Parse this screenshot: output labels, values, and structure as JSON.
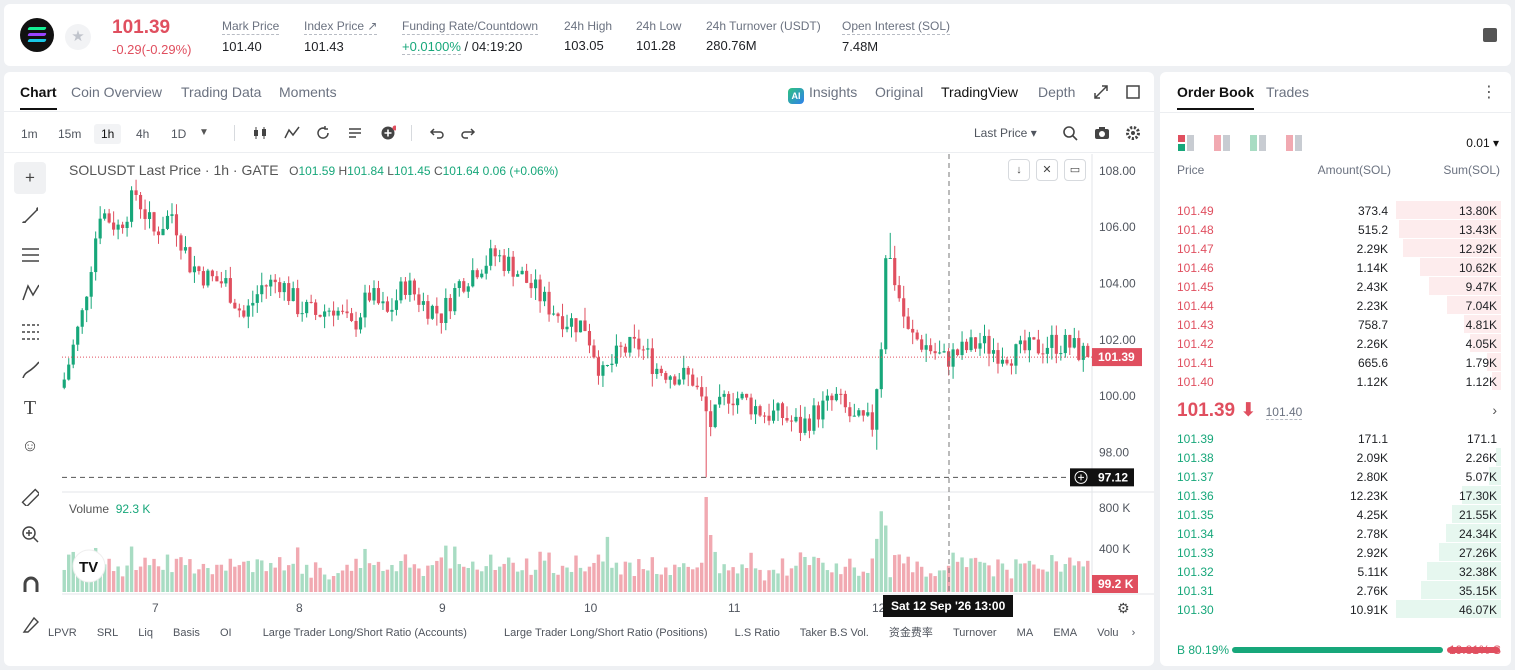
{
  "ticker": {
    "last_price": "101.39",
    "change": "-0.29(-0.29%)",
    "stats": [
      {
        "label": "Mark Price",
        "value": "101.40"
      },
      {
        "label": "Index Price ↗",
        "value": "101.43"
      },
      {
        "label": "Funding Rate/Countdown",
        "value_green": "+0.0100%",
        "value": " / 04:19:20"
      },
      {
        "label": "24h High",
        "value": "103.05"
      },
      {
        "label": "24h Low",
        "value": "101.28"
      },
      {
        "label": "24h Turnover (USDT)",
        "value": "280.76M"
      },
      {
        "label": "Open Interest (SOL)",
        "value": "7.48M"
      }
    ]
  },
  "chart_tabs": [
    "Chart",
    "Coin Overview",
    "Trading Data",
    "Moments"
  ],
  "view_tabs": {
    "ai": "AI",
    "insights": "Insights",
    "original": "Original",
    "tradingview": "TradingView",
    "depth": "Depth"
  },
  "timeframes": [
    "1m",
    "15m",
    "1h",
    "4h",
    "1D"
  ],
  "price_source": "Last Price ▾",
  "legend": {
    "title": "SOLUSDT Last Price · 1h · GATE",
    "o_label": "O",
    "o": "101.59",
    "h_label": "H",
    "h": "101.84",
    "l_label": "L",
    "l": "101.45",
    "c_label": "C",
    "c": "101.64",
    "chg": "0.06 (+0.06%)"
  },
  "volume_legend": {
    "label": "Volume",
    "value": "92.3 K"
  },
  "crosshair": {
    "time": "Sat 12 Sep '26   13:00",
    "price": "97.12"
  },
  "indicators": [
    "LPVR",
    "SRL",
    "Liq",
    "Basis",
    "OI",
    "Large Trader Long/Short Ratio (Accounts)",
    "Large Trader Long/Short Ratio (Positions)",
    "L.S Ratio",
    "Taker B.S Vol.",
    "资金费率",
    "Turnover",
    "MA",
    "EMA",
    "Volu"
  ],
  "chart_data": {
    "type": "candlestick",
    "symbol": "SOLUSDT",
    "interval": "1h",
    "x_ticks": [
      "7",
      "8",
      "9",
      "10",
      "11",
      "12",
      "13"
    ],
    "price_ticks": [
      "108.00",
      "106.00",
      "104.00",
      "102.00",
      "100.00",
      "98.00"
    ],
    "volume_ticks": [
      "800 K",
      "400 K"
    ],
    "ylim": [
      96.6,
      108.6
    ],
    "last_price": 101.39,
    "last_price_label": "101.39",
    "last_volume_label": "99.2 K",
    "close_path": [
      [
        0,
        100.6
      ],
      [
        4,
        102.9
      ],
      [
        8,
        106.6
      ],
      [
        12,
        106.0
      ],
      [
        16,
        107.2
      ],
      [
        20,
        105.8
      ],
      [
        24,
        106.5
      ],
      [
        28,
        104.7
      ],
      [
        32,
        104.2
      ],
      [
        36,
        104.0
      ],
      [
        40,
        102.8
      ],
      [
        44,
        103.9
      ],
      [
        48,
        104.1
      ],
      [
        52,
        103.2
      ],
      [
        56,
        102.9
      ],
      [
        60,
        103.2
      ],
      [
        64,
        102.4
      ],
      [
        68,
        103.6
      ],
      [
        72,
        102.9
      ],
      [
        76,
        104.0
      ],
      [
        80,
        103.3
      ],
      [
        84,
        102.9
      ],
      [
        88,
        104.0
      ],
      [
        92,
        104.6
      ],
      [
        96,
        105.0
      ],
      [
        100,
        104.6
      ],
      [
        104,
        103.9
      ],
      [
        108,
        103.2
      ],
      [
        112,
        102.7
      ],
      [
        116,
        102.5
      ],
      [
        120,
        100.7
      ],
      [
        124,
        101.6
      ],
      [
        128,
        101.8
      ],
      [
        132,
        101.0
      ],
      [
        136,
        100.8
      ],
      [
        140,
        100.6
      ],
      [
        144,
        99.0
      ],
      [
        148,
        100.1
      ],
      [
        152,
        99.8
      ],
      [
        156,
        99.4
      ],
      [
        160,
        99.3
      ],
      [
        164,
        98.9
      ],
      [
        168,
        99.5
      ],
      [
        172,
        99.9
      ],
      [
        176,
        99.1
      ],
      [
        180,
        99.0
      ],
      [
        184,
        104.8
      ],
      [
        188,
        102.2
      ],
      [
        192,
        101.8
      ],
      [
        196,
        101.3
      ],
      [
        200,
        101.6
      ],
      [
        204,
        101.9
      ],
      [
        208,
        101.6
      ],
      [
        212,
        101.5
      ],
      [
        216,
        101.7
      ],
      [
        220,
        101.9
      ],
      [
        224,
        101.8
      ],
      [
        228,
        101.4
      ]
    ]
  },
  "book": {
    "tabs": [
      "Order Book",
      "Trades"
    ],
    "precision": "0.01 ▾",
    "headers": [
      "Price",
      "Amount(SOL)",
      "Sum(SOL)"
    ],
    "asks": [
      {
        "price": "101.49",
        "amount": "373.4",
        "sum": "13.80K",
        "depth": 1.0
      },
      {
        "price": "101.48",
        "amount": "515.2",
        "sum": "13.43K",
        "depth": 0.973
      },
      {
        "price": "101.47",
        "amount": "2.29K",
        "sum": "12.92K",
        "depth": 0.936
      },
      {
        "price": "101.46",
        "amount": "1.14K",
        "sum": "10.62K",
        "depth": 0.77
      },
      {
        "price": "101.45",
        "amount": "2.43K",
        "sum": "9.47K",
        "depth": 0.686
      },
      {
        "price": "101.44",
        "amount": "2.23K",
        "sum": "7.04K",
        "depth": 0.51
      },
      {
        "price": "101.43",
        "amount": "758.7",
        "sum": "4.81K",
        "depth": 0.349
      },
      {
        "price": "101.42",
        "amount": "2.26K",
        "sum": "4.05K",
        "depth": 0.293
      },
      {
        "price": "101.41",
        "amount": "665.6",
        "sum": "1.79K",
        "depth": 0.13
      },
      {
        "price": "101.40",
        "amount": "1.12K",
        "sum": "1.12K",
        "depth": 0.081
      }
    ],
    "mid_price": "101.39 ⬇",
    "mid_ref": "101.40",
    "bids": [
      {
        "price": "101.39",
        "amount": "171.1",
        "sum": "171.1",
        "depth": 0.004
      },
      {
        "price": "101.38",
        "amount": "2.09K",
        "sum": "2.26K",
        "depth": 0.049
      },
      {
        "price": "101.37",
        "amount": "2.80K",
        "sum": "5.07K",
        "depth": 0.11
      },
      {
        "price": "101.36",
        "amount": "12.23K",
        "sum": "17.30K",
        "depth": 0.375
      },
      {
        "price": "101.35",
        "amount": "4.25K",
        "sum": "21.55K",
        "depth": 0.468
      },
      {
        "price": "101.34",
        "amount": "2.78K",
        "sum": "24.34K",
        "depth": 0.528
      },
      {
        "price": "101.33",
        "amount": "2.92K",
        "sum": "27.26K",
        "depth": 0.592
      },
      {
        "price": "101.32",
        "amount": "5.11K",
        "sum": "32.38K",
        "depth": 0.703
      },
      {
        "price": "101.31",
        "amount": "2.76K",
        "sum": "35.15K",
        "depth": 0.763
      },
      {
        "price": "101.30",
        "amount": "10.91K",
        "sum": "46.07K",
        "depth": 1.0
      }
    ],
    "buy_ratio": "B 80.19%",
    "sell_ratio": "19.81% S",
    "buy_fraction": 0.8019
  },
  "colors": {
    "up": "#17a77a",
    "down": "#e04f5f",
    "up_light": "#a8dcc3",
    "down_light": "#f1a9b1"
  }
}
